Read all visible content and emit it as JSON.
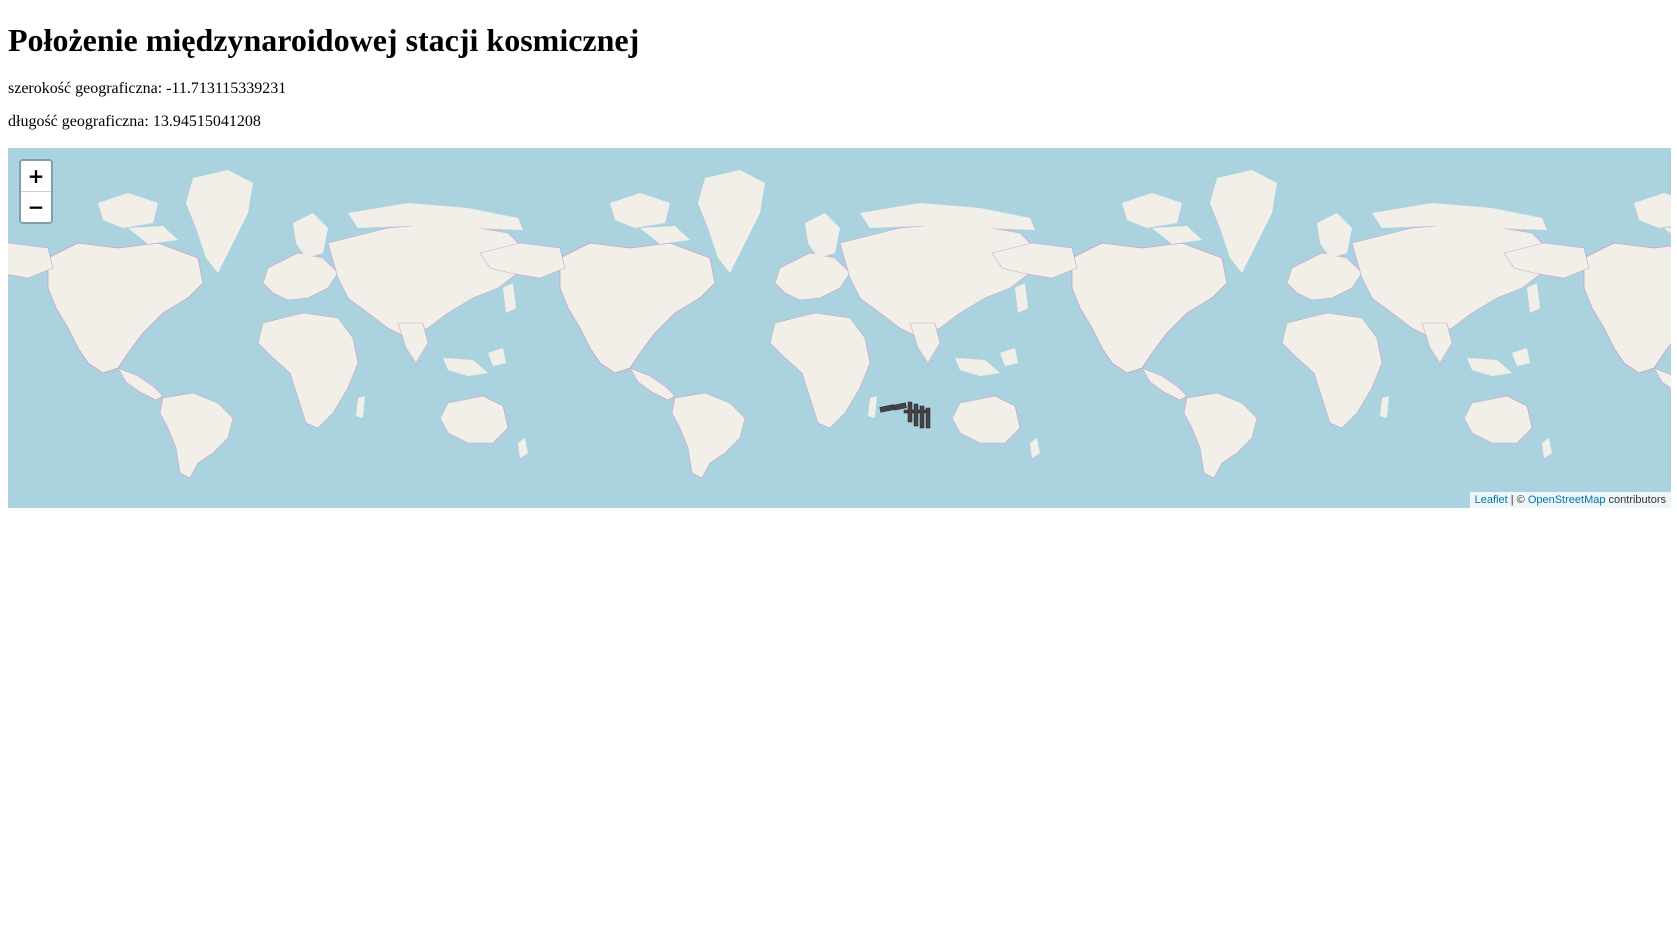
{
  "page": {
    "title": "Położenie międzynaroidowej stacji kosmicznej"
  },
  "coordinates": {
    "latitude_label": "szerokość geograficzna: -11.713115339231",
    "longitude_label": "długość geograficzna: 13.94515041208",
    "latitude": -11.713115339231,
    "longitude": 13.94515041208
  },
  "map": {
    "zoom_in_label": "+",
    "zoom_out_label": "−",
    "attribution": {
      "leaflet_link": "Leaflet",
      "separator": " | © ",
      "osm_link": "OpenStreetMap",
      "suffix": " contributors"
    },
    "colors": {
      "water": "#aad3df",
      "land": "#f2efe9",
      "border": "#c9a3c6"
    },
    "marker_icon": "iss-icon"
  }
}
